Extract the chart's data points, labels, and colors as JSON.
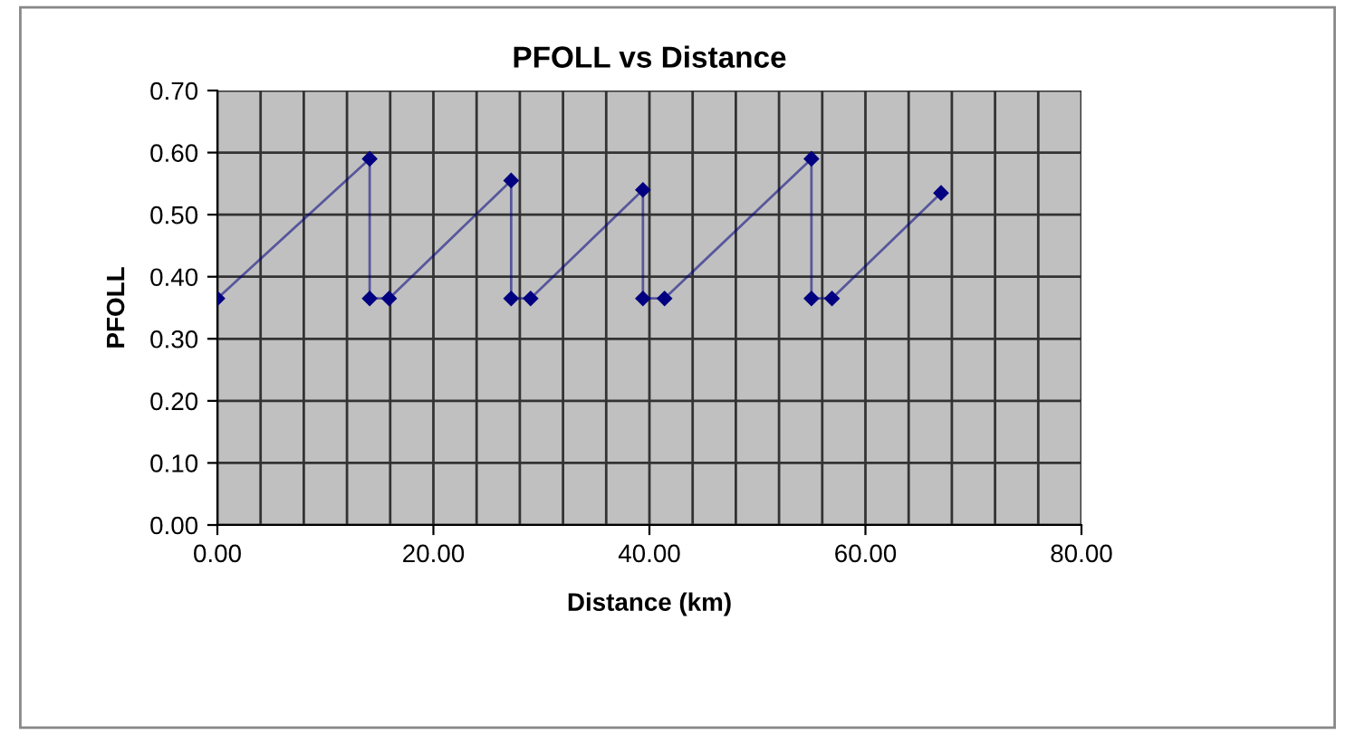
{
  "chart_data": {
    "type": "line",
    "title": "PFOLL vs Distance",
    "xlabel": "Distance (km)",
    "ylabel": "PFOLL",
    "x": [
      0,
      14.1,
      14.1,
      15.9,
      27.2,
      27.2,
      29.0,
      39.4,
      39.4,
      41.4,
      55.0,
      55.0,
      56.9,
      67.0
    ],
    "series": [
      {
        "color": "#000080",
        "values": [
          0.365,
          0.59,
          0.365,
          0.365,
          0.555,
          0.365,
          0.365,
          0.54,
          0.365,
          0.365,
          0.59,
          0.365,
          0.365,
          0.535
        ]
      }
    ],
    "xlim": [
      0,
      80
    ],
    "ylim": [
      0,
      0.7
    ],
    "xticks": [
      {
        "value": 0,
        "label": "0.00"
      },
      {
        "value": 20,
        "label": "20.00"
      },
      {
        "value": 40,
        "label": "40.00"
      },
      {
        "value": 60,
        "label": "60.00"
      },
      {
        "value": 80,
        "label": "80.00"
      }
    ],
    "yticks": [
      {
        "value": 0,
        "label": "0.00"
      },
      {
        "value": 0.1,
        "label": "0.10"
      },
      {
        "value": 0.2,
        "label": "0.20"
      },
      {
        "value": 0.3,
        "label": "0.30"
      },
      {
        "value": 0.4,
        "label": "0.40"
      },
      {
        "value": 0.5,
        "label": "0.50"
      },
      {
        "value": 0.6,
        "label": "0.60"
      },
      {
        "value": 0.7,
        "label": "0.70"
      }
    ],
    "grid": true,
    "marker": "diamond",
    "line_style": "solid"
  }
}
